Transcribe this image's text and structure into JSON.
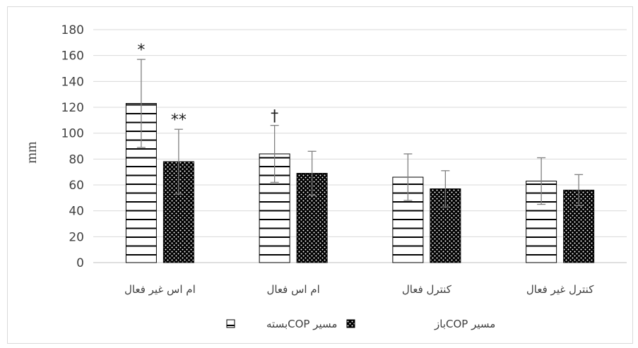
{
  "chart_data": {
    "type": "bar",
    "title": "",
    "xlabel": "",
    "ylabel": "mm",
    "ylim": [
      0,
      180
    ],
    "yticks": [
      0,
      20,
      40,
      60,
      80,
      100,
      120,
      140,
      160,
      180
    ],
    "grid": true,
    "legend_position": "bottom",
    "categories": [
      "ام اس غیر فعال",
      "ام اس فعال",
      "کنترل فعال",
      "کنترل غیر فعال"
    ],
    "series": [
      {
        "name": "مسیر COPبسته",
        "pattern": "horizontal-lines",
        "values": [
          123,
          84,
          66,
          63
        ],
        "error_upper": [
          157,
          106,
          84,
          81
        ],
        "error_lower": [
          89,
          62,
          48,
          45
        ]
      },
      {
        "name": "مسیر COPباز",
        "pattern": "dots",
        "values": [
          78,
          69,
          57,
          56
        ],
        "error_upper": [
          103,
          86,
          71,
          68
        ],
        "error_lower": [
          53,
          52,
          43,
          44
        ]
      }
    ],
    "annotations": [
      {
        "category": 0,
        "series": 0,
        "text": "*"
      },
      {
        "category": 0,
        "series": 1,
        "text": "**"
      },
      {
        "category": 1,
        "series": 0,
        "text": "†"
      }
    ],
    "colors": {
      "grid": "#d9d9d9",
      "bar_stroke": "#000000",
      "error_bar": "#808080"
    }
  }
}
